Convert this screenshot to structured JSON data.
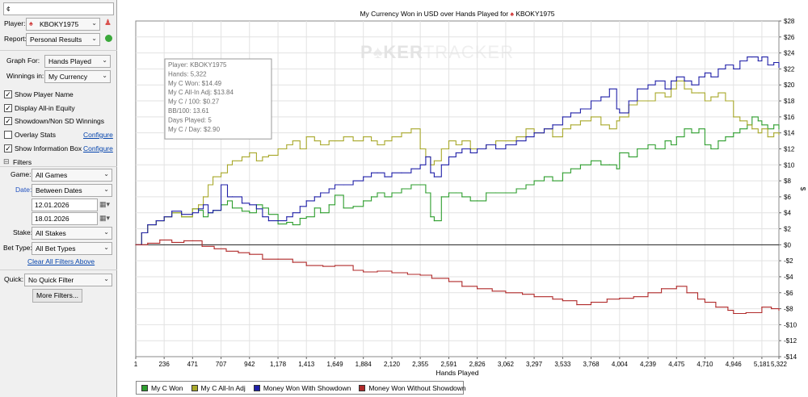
{
  "sidebar": {
    "search_value": "¢",
    "player_label": "Player:",
    "player_value": "KBOKY1975",
    "report_label": "Report:",
    "report_value": "Personal Results",
    "graph_for_label": "Graph For:",
    "graph_for_value": "Hands Played",
    "winnings_label": "Winnings in:",
    "winnings_value": "My Currency",
    "options": [
      {
        "label": "Show Player Name",
        "checked": true
      },
      {
        "label": "Display All-in Equity",
        "checked": true
      },
      {
        "label": "Showdown/Non SD Winnings",
        "checked": true
      },
      {
        "label": "Overlay Stats",
        "checked": false
      },
      {
        "label": "Show Information Box",
        "checked": true
      }
    ],
    "configure_label": "Configure",
    "filters_title": "Filters",
    "game_label": "Game:",
    "game_value": "All Games",
    "date_label": "Date:",
    "date_value": "Between Dates",
    "date_from": "12.01.2026",
    "date_to": "18.01.2026",
    "stake_label": "Stake:",
    "stake_value": "All Stakes",
    "bet_type_label": "Bet Type:",
    "bet_type_value": "All Bet Types",
    "clear_filters": "Clear All Filters Above",
    "quick_label": "Quick:",
    "quick_value": "No Quick Filter",
    "more_filters": "More Filters..."
  },
  "chart_data": {
    "type": "line",
    "title": "My Currency Won in USD over Hands Played for",
    "title_player": "KBOKY1975",
    "watermark_left": "P",
    "watermark_mid": "KER",
    "watermark_right": "TRACKER",
    "xlabel": "Hands Played",
    "ylabel": "$",
    "xlim": [
      1,
      5322
    ],
    "ylim": [
      -14,
      28
    ],
    "y_ticks": [
      -14,
      -12,
      -10,
      -8,
      -6,
      -4,
      -2,
      0,
      2,
      4,
      6,
      8,
      10,
      12,
      14,
      16,
      18,
      20,
      22,
      24,
      26,
      28
    ],
    "x_ticks": [
      "1",
      "236",
      "471",
      "707",
      "942",
      "1,178",
      "1,413",
      "1,649",
      "1,884",
      "2,120",
      "2,355",
      "2,591",
      "2,826",
      "3,062",
      "3,297",
      "3,533",
      "3,768",
      "4,004",
      "4,239",
      "4,475",
      "4,710",
      "4,946",
      "5,181",
      "5,322"
    ],
    "x_tick_values": [
      1,
      236,
      471,
      707,
      942,
      1178,
      1413,
      1649,
      1884,
      2120,
      2355,
      2591,
      2826,
      3062,
      3297,
      3533,
      3768,
      4004,
      4239,
      4475,
      4710,
      4946,
      5181,
      5322
    ],
    "y_tick_labels": [
      "-$14",
      "-$12",
      "-$10",
      "-$8",
      "-$6",
      "-$4",
      "-$2",
      "$0",
      "$2",
      "$4",
      "$6",
      "$8",
      "$10",
      "$12",
      "$14",
      "$16",
      "$18",
      "$20",
      "$22",
      "$24",
      "$26",
      "$28"
    ],
    "grid": true,
    "legend_position": "bottom-left",
    "info_box": [
      "Player: KBOKY1975",
      "Hands: 5,322",
      "My C Won: $14.49",
      "My C All-In Adj: $13.84",
      "My C / 100: $0.27",
      "BB/100: 13.61",
      "Days Played: 5",
      "My C / Day: $2.90"
    ],
    "series": [
      {
        "name": "My C Won",
        "color": "#2e9e2e",
        "x": [
          1,
          50,
          100,
          170,
          236,
          300,
          380,
          471,
          520,
          560,
          600,
          640,
          707,
          760,
          800,
          880,
          942,
          1000,
          1050,
          1100,
          1178,
          1250,
          1300,
          1360,
          1413,
          1480,
          1530,
          1600,
          1649,
          1720,
          1800,
          1884,
          1950,
          2000,
          2060,
          2120,
          2200,
          2280,
          2355,
          2400,
          2440,
          2470,
          2530,
          2591,
          2650,
          2700,
          2770,
          2826,
          2900,
          2980,
          3062,
          3150,
          3230,
          3297,
          3380,
          3450,
          3533,
          3600,
          3680,
          3768,
          3850,
          3920,
          3980,
          4004,
          4080,
          4150,
          4239,
          4300,
          4380,
          4430,
          4475,
          4540,
          4600,
          4660,
          4710,
          4760,
          4820,
          4880,
          4946,
          5000,
          5060,
          5100,
          5150,
          5181,
          5230,
          5280,
          5322
        ],
        "values": [
          0,
          1.5,
          2.5,
          3.0,
          3.5,
          4.0,
          3.5,
          4.5,
          4.3,
          3.5,
          4.0,
          4.3,
          5.0,
          5.5,
          4.6,
          4.2,
          4.0,
          5.0,
          4.6,
          3.8,
          2.6,
          2.8,
          2.5,
          3.3,
          3.5,
          4.6,
          4.0,
          5.0,
          6.2,
          4.6,
          4.8,
          5.5,
          6.0,
          6.5,
          6.0,
          6.5,
          7.0,
          7.5,
          7.5,
          6.5,
          3.5,
          3.0,
          6.0,
          6.5,
          6.5,
          6.0,
          5.5,
          5.5,
          6.5,
          6.5,
          6.5,
          7.0,
          7.5,
          8.0,
          8.5,
          8.0,
          9.0,
          9.5,
          10.0,
          10.5,
          10.0,
          10.0,
          9.5,
          11.5,
          11.0,
          12.0,
          12.5,
          12.0,
          13.0,
          12.5,
          13.5,
          14.5,
          14.0,
          14.5,
          12.5,
          12.0,
          13.0,
          13.5,
          14.0,
          14.5,
          15.0,
          16.0,
          15.5,
          15.0,
          14.5,
          15.0,
          14.5
        ]
      },
      {
        "name": "My C All-In Adj",
        "color": "#a8a82a",
        "x": [
          1,
          50,
          100,
          170,
          236,
          300,
          380,
          471,
          520,
          560,
          600,
          640,
          707,
          760,
          800,
          880,
          942,
          1000,
          1050,
          1100,
          1178,
          1250,
          1300,
          1360,
          1413,
          1480,
          1530,
          1600,
          1649,
          1720,
          1800,
          1884,
          1950,
          2000,
          2060,
          2120,
          2200,
          2280,
          2355,
          2400,
          2440,
          2470,
          2530,
          2591,
          2650,
          2700,
          2770,
          2826,
          2900,
          2980,
          3062,
          3150,
          3230,
          3297,
          3380,
          3450,
          3533,
          3600,
          3680,
          3768,
          3850,
          3920,
          3980,
          4004,
          4080,
          4150,
          4239,
          4300,
          4380,
          4430,
          4475,
          4540,
          4600,
          4660,
          4710,
          4760,
          4820,
          4880,
          4946,
          5000,
          5060,
          5100,
          5150,
          5181,
          5230,
          5280,
          5322
        ],
        "values": [
          0,
          1.5,
          2.5,
          3.0,
          3.5,
          4.0,
          3.5,
          4.5,
          5.0,
          6.0,
          7.5,
          8.5,
          9.0,
          10.0,
          10.5,
          11.0,
          11.5,
          10.5,
          11.0,
          11.2,
          12.0,
          12.5,
          13.0,
          12.0,
          13.5,
          13.0,
          12.5,
          13.0,
          13.0,
          13.5,
          13.0,
          13.5,
          13.0,
          12.5,
          13.0,
          13.5,
          14.0,
          14.5,
          12.0,
          11.0,
          10.0,
          10.5,
          12.0,
          13.0,
          12.5,
          13.0,
          12.0,
          12.0,
          12.5,
          13.0,
          13.0,
          13.5,
          14.5,
          14.0,
          14.5,
          13.5,
          14.5,
          15.0,
          15.5,
          16.0,
          15.0,
          14.5,
          15.5,
          16.0,
          17.5,
          18.0,
          18.0,
          19.0,
          18.5,
          19.5,
          20.5,
          19.5,
          19.0,
          19.0,
          18.0,
          18.5,
          19.0,
          18.0,
          16.0,
          15.5,
          15.0,
          14.5,
          14.0,
          14.5,
          13.5,
          14.0,
          13.8
        ]
      },
      {
        "name": "Money Won With Showdown",
        "color": "#2020a8",
        "x": [
          1,
          50,
          100,
          170,
          236,
          300,
          380,
          471,
          520,
          560,
          600,
          640,
          707,
          760,
          800,
          880,
          942,
          1000,
          1050,
          1100,
          1178,
          1250,
          1300,
          1360,
          1413,
          1480,
          1530,
          1600,
          1649,
          1720,
          1800,
          1884,
          1950,
          2000,
          2060,
          2120,
          2200,
          2280,
          2355,
          2400,
          2440,
          2470,
          2530,
          2591,
          2650,
          2700,
          2770,
          2826,
          2900,
          2980,
          3062,
          3150,
          3230,
          3297,
          3380,
          3450,
          3533,
          3600,
          3680,
          3768,
          3850,
          3920,
          3980,
          4004,
          4080,
          4150,
          4239,
          4300,
          4380,
          4430,
          4475,
          4540,
          4600,
          4660,
          4710,
          4760,
          4820,
          4880,
          4946,
          5000,
          5060,
          5100,
          5150,
          5181,
          5230,
          5280,
          5322
        ],
        "values": [
          0,
          1.5,
          2.5,
          3.0,
          3.5,
          4.2,
          3.8,
          4.0,
          4.5,
          5.0,
          4.0,
          4.3,
          7.5,
          6.0,
          6.0,
          5.2,
          5.0,
          4.5,
          3.5,
          3.0,
          3.0,
          3.5,
          4.0,
          4.8,
          5.5,
          6.0,
          6.5,
          7.0,
          7.5,
          7.5,
          8.0,
          8.5,
          9.0,
          9.0,
          8.5,
          9.0,
          9.0,
          9.5,
          10.0,
          11.0,
          9.0,
          8.5,
          10.0,
          11.0,
          11.5,
          12.0,
          11.5,
          12.0,
          12.5,
          12.0,
          12.5,
          13.0,
          13.5,
          14.0,
          14.5,
          15.0,
          16.0,
          16.5,
          17.0,
          18.0,
          18.5,
          19.5,
          17.0,
          16.5,
          18.0,
          19.5,
          20.0,
          20.5,
          19.5,
          20.5,
          21.0,
          20.5,
          20.0,
          21.0,
          21.5,
          21.0,
          22.0,
          22.5,
          22.0,
          23.0,
          23.5,
          23.5,
          23.0,
          23.5,
          22.5,
          22.8,
          22.2
        ]
      },
      {
        "name": "Money Won Without Showdown",
        "color": "#b02a2a",
        "x": [
          1,
          100,
          200,
          300,
          400,
          471,
          550,
          650,
          750,
          850,
          942,
          1050,
          1178,
          1300,
          1413,
          1550,
          1649,
          1800,
          1884,
          2000,
          2120,
          2250,
          2355,
          2450,
          2591,
          2700,
          2826,
          2950,
          3062,
          3200,
          3297,
          3450,
          3533,
          3650,
          3768,
          3900,
          4004,
          4120,
          4239,
          4350,
          4475,
          4560,
          4650,
          4710,
          4800,
          4900,
          4946,
          5050,
          5181,
          5260,
          5322
        ],
        "values": [
          0,
          0.2,
          0.6,
          0.3,
          0.5,
          0.5,
          -0.2,
          -0.5,
          -0.8,
          -1.0,
          -1.2,
          -1.8,
          -1.8,
          -2.2,
          -2.6,
          -2.7,
          -2.6,
          -3.2,
          -3.4,
          -3.3,
          -3.5,
          -3.7,
          -3.8,
          -4.2,
          -4.6,
          -5.2,
          -5.5,
          -5.8,
          -6.0,
          -6.2,
          -6.5,
          -6.8,
          -7.0,
          -7.5,
          -7.2,
          -6.8,
          -6.7,
          -6.5,
          -6.0,
          -5.5,
          -5.2,
          -6.0,
          -6.8,
          -7.2,
          -7.8,
          -8.2,
          -8.6,
          -8.5,
          -7.8,
          -8.0,
          -8.2
        ]
      }
    ]
  }
}
